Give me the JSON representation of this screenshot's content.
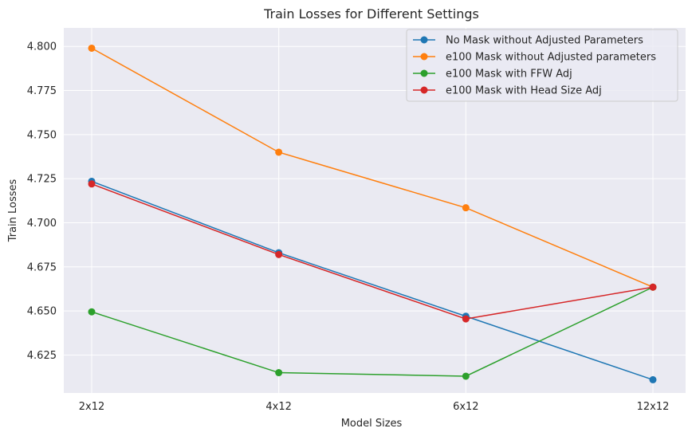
{
  "chart_data": {
    "type": "line",
    "title": "Train Losses for Different Settings",
    "xlabel": "Model Sizes",
    "ylabel": "Train Losses",
    "categories": [
      "2x12",
      "4x12",
      "6x12",
      "12x12"
    ],
    "ylim": [
      4.6035,
      4.8105
    ],
    "yticks": [
      4.625,
      4.65,
      4.675,
      4.7,
      4.725,
      4.75,
      4.775,
      4.8
    ],
    "ytick_labels": [
      "4.625",
      "4.650",
      "4.675",
      "4.700",
      "4.725",
      "4.750",
      "4.775",
      "4.800"
    ],
    "grid": true,
    "legend_position": "top-right",
    "series": [
      {
        "name": "No Mask without Adjusted Parameters",
        "color": "#1f77b4",
        "values": [
          4.7235,
          4.683,
          4.647,
          4.611
        ]
      },
      {
        "name": "e100 Mask without Adjusted parameters",
        "color": "#ff7f0e",
        "values": [
          4.799,
          4.74,
          4.7085,
          4.6635
        ]
      },
      {
        "name": "e100 Mask with FFW Adj",
        "color": "#2ca02c",
        "values": [
          4.6495,
          4.615,
          4.613,
          4.6635
        ]
      },
      {
        "name": "e100 Mask with Head Size Adj",
        "color": "#d62728",
        "values": [
          4.722,
          4.682,
          4.6455,
          4.6635
        ]
      }
    ]
  }
}
